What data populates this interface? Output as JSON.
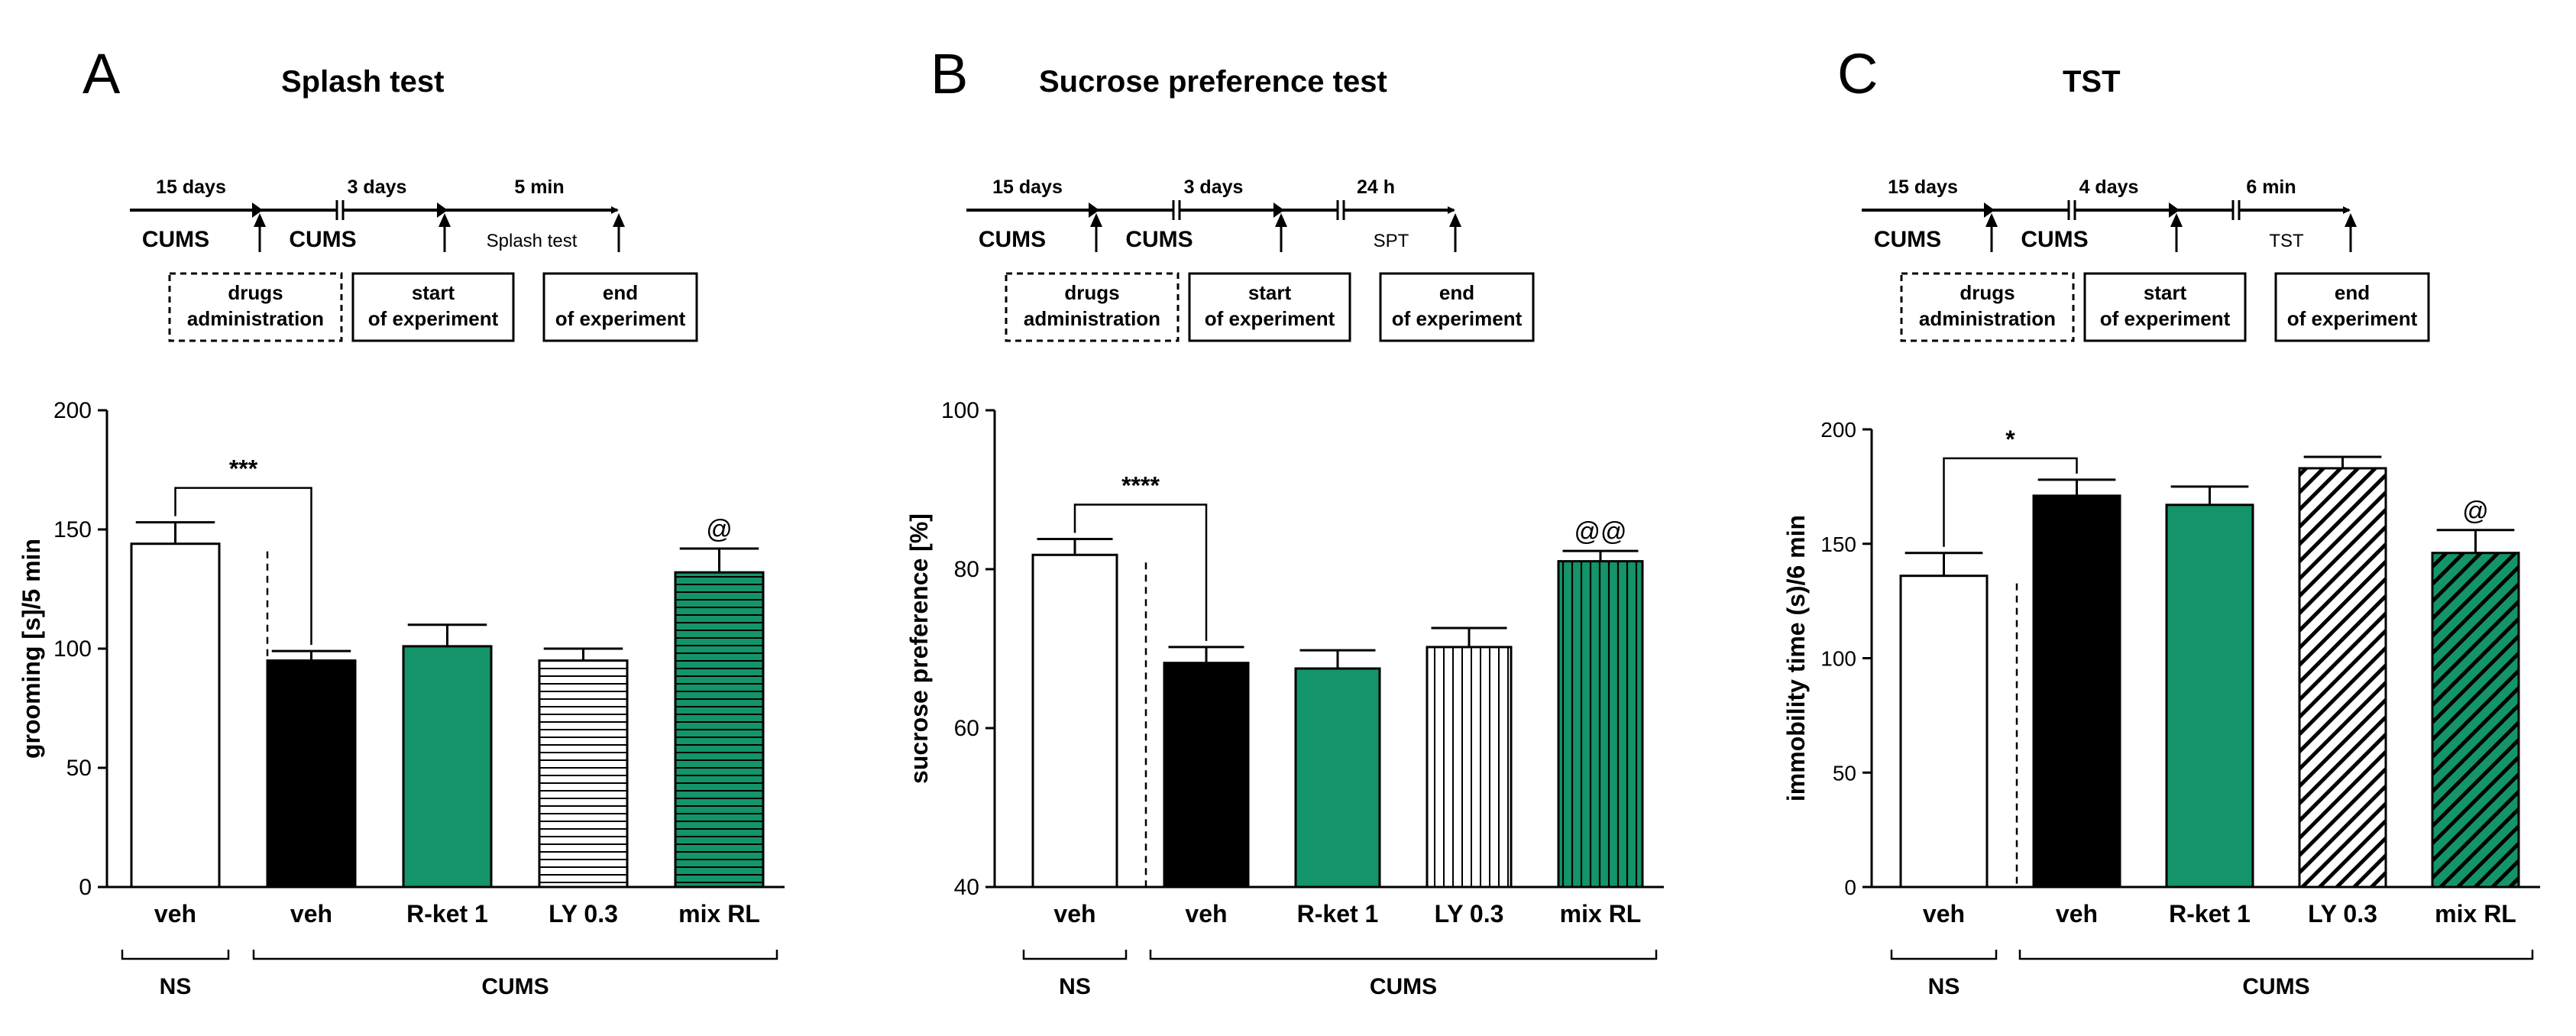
{
  "colors": {
    "green": "#14946A",
    "black": "#000000",
    "white": "#ffffff"
  },
  "panels": [
    {
      "letter": "A",
      "title": "Splash test",
      "timeline": {
        "durations": [
          "15 days",
          "3 days",
          "5 min"
        ],
        "phases": [
          "CUMS",
          "CUMS",
          "Splash test"
        ],
        "boxes": [
          [
            "drugs",
            "administration"
          ],
          [
            "start",
            "of experiment"
          ],
          [
            "end",
            "of experiment"
          ]
        ]
      },
      "group_labels": {
        "ns": "NS",
        "cums": "CUMS"
      },
      "annotations": {
        "sig": "***",
        "marker": "@"
      }
    },
    {
      "letter": "B",
      "title": "Sucrose preference test",
      "timeline": {
        "durations": [
          "15 days",
          "3 days",
          "24 h"
        ],
        "phases": [
          "CUMS",
          "CUMS",
          "SPT"
        ],
        "boxes": [
          [
            "drugs",
            "administration"
          ],
          [
            "start",
            "of experiment"
          ],
          [
            "end",
            "of experiment"
          ]
        ]
      },
      "group_labels": {
        "ns": "NS",
        "cums": "CUMS"
      },
      "annotations": {
        "sig": "****",
        "marker": "@@"
      }
    },
    {
      "letter": "C",
      "title": "TST",
      "timeline": {
        "durations": [
          "15 days",
          "4 days",
          "6 min"
        ],
        "phases": [
          "CUMS",
          "CUMS",
          "TST"
        ],
        "boxes": [
          [
            "drugs",
            "administration"
          ],
          [
            "start",
            "of experiment"
          ],
          [
            "end",
            "of experiment"
          ]
        ]
      },
      "group_labels": {
        "ns": "NS",
        "cums": "CUMS"
      },
      "annotations": {
        "sig": "*",
        "marker": "@"
      }
    }
  ],
  "chart_data": [
    {
      "type": "bar",
      "title": "Splash test",
      "ylabel": "grooming [s]/5 min",
      "xlabel": "",
      "categories": [
        "veh",
        "veh",
        "R-ket 1",
        "LY 0.3",
        "mix RL"
      ],
      "values": [
        144,
        95,
        101,
        95,
        132
      ],
      "errors": [
        9,
        4,
        9,
        5,
        10
      ],
      "fills": [
        "white",
        "black",
        "green",
        "hlines",
        "green-hlines"
      ],
      "ylim": [
        0,
        200
      ],
      "yticks": [
        0,
        50,
        100,
        150,
        200
      ]
    },
    {
      "type": "bar",
      "title": "Sucrose preference test",
      "ylabel": "sucrose preference [%]",
      "xlabel": "",
      "categories": [
        "veh",
        "veh",
        "R-ket 1",
        "LY 0.3",
        "mix RL"
      ],
      "values": [
        81.8,
        68.2,
        67.5,
        70.2,
        81
      ],
      "errors": [
        2,
        2,
        2.3,
        2.4,
        1.3
      ],
      "fills": [
        "white",
        "black",
        "green",
        "vlines",
        "green-vlines"
      ],
      "ylim": [
        40,
        100
      ],
      "yticks": [
        40,
        60,
        80,
        100
      ]
    },
    {
      "type": "bar",
      "title": "TST",
      "ylabel": "immobility time (s)/6 min",
      "xlabel": "",
      "categories": [
        "veh",
        "veh",
        "R-ket 1",
        "LY 0.3",
        "mix RL"
      ],
      "values": [
        136,
        171,
        167,
        183,
        146
      ],
      "errors": [
        10,
        7,
        8,
        5,
        10
      ],
      "fills": [
        "white",
        "black",
        "green",
        "diag",
        "green-diag"
      ],
      "ylim": [
        0,
        200
      ],
      "yticks": [
        0,
        50,
        100,
        150,
        200
      ]
    }
  ]
}
